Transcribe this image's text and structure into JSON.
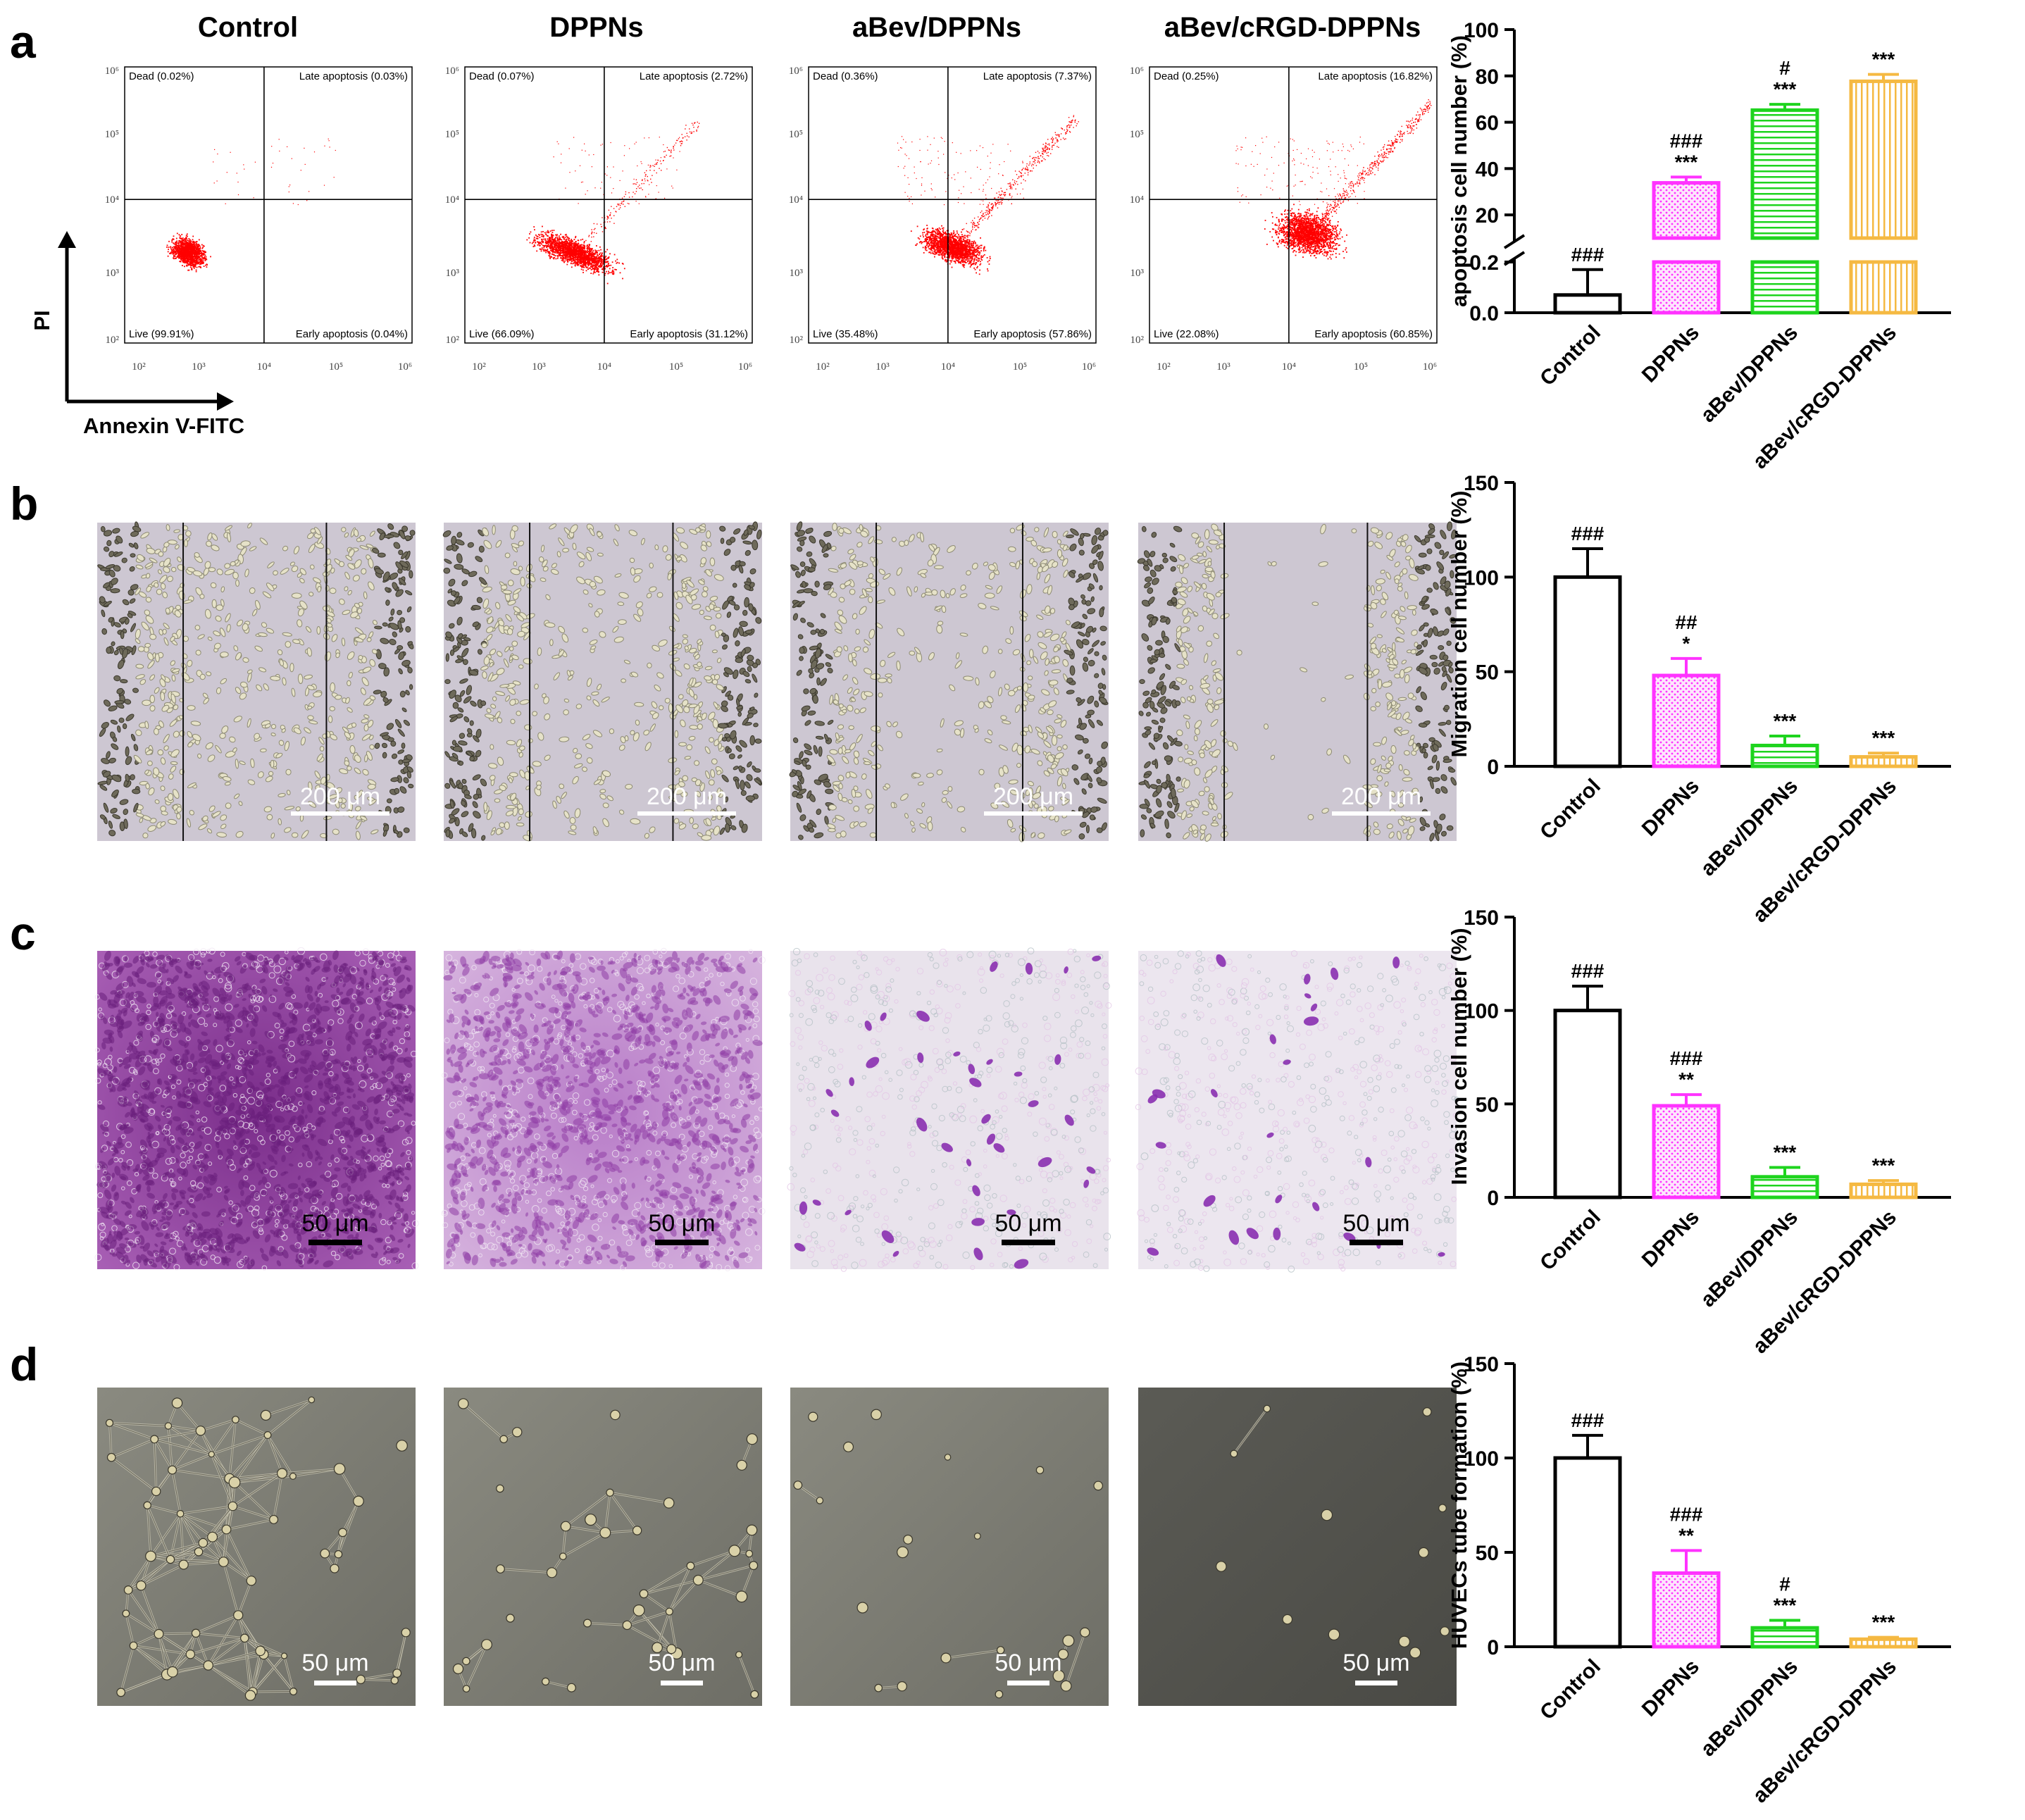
{
  "panel_letters": [
    "a",
    "b",
    "c",
    "d"
  ],
  "column_titles": [
    "Control",
    "DPPNs",
    "aBev/DPPNs",
    "aBev/cRGD-DPPNs"
  ],
  "flow": {
    "y_axis_label": "PI",
    "x_axis_label": "Annexin V-FITC",
    "tick_labels": [
      "10²",
      "10³",
      "10⁴",
      "10⁵",
      "10⁶"
    ],
    "plots": [
      {
        "dead": "Dead (0.02%)",
        "late": "Late apoptosis (0.03%)",
        "live": "Live (99.91%)",
        "early": "Early apoptosis (0.04%)"
      },
      {
        "dead": "Dead (0.07%)",
        "late": "Late apoptosis (2.72%)",
        "live": "Live (66.09%)",
        "early": "Early apoptosis (31.12%)"
      },
      {
        "dead": "Dead (0.36%)",
        "late": "Late apoptosis (7.37%)",
        "live": "Live (35.48%)",
        "early": "Early apoptosis (57.86%)"
      },
      {
        "dead": "Dead (0.25%)",
        "late": "Late apoptosis (16.82%)",
        "live": "Live (22.08%)",
        "early": "Early apoptosis (60.85%)"
      }
    ]
  },
  "scale_bars": {
    "b": "200 μm",
    "c": "50 μm",
    "d": "50 μm"
  },
  "colors": {
    "control": "#000000",
    "dppns": "#ff33ff",
    "abev_dppns": "#1ed41e",
    "abev_crgd_dppns": "#f5b942",
    "flow_dots": "#ff0000"
  },
  "chart_data": [
    {
      "type": "bar",
      "panel": "a",
      "ylabel": "apoptosis cell number (%)",
      "categories": [
        "Control",
        "DPPNs",
        "aBev/DPPNs",
        "aBev/cRGD-DPPNs"
      ],
      "values": [
        0.07,
        33.84,
        65.23,
        77.67
      ],
      "errors": [
        0.1,
        2.5,
        2.5,
        3
      ],
      "broken_axis": true,
      "lower_ylim": [
        0,
        0.2
      ],
      "upper_ylim": [
        10,
        100
      ],
      "yticks_lower": [
        "0.0",
        "0.2"
      ],
      "yticks_upper": [
        "20",
        "40",
        "60",
        "80",
        "100"
      ],
      "significance": [
        [
          "###"
        ],
        [
          "###",
          "***"
        ],
        [
          "#",
          "***"
        ],
        [
          "***"
        ]
      ]
    },
    {
      "type": "bar",
      "panel": "b",
      "ylabel": "Migration cell number (%)",
      "categories": [
        "Control",
        "DPPNs",
        "aBev/DPPNs",
        "aBev/cRGD-DPPNs"
      ],
      "values": [
        100,
        48,
        11,
        5
      ],
      "errors": [
        15,
        9,
        5,
        2
      ],
      "ylim": [
        0,
        150
      ],
      "yticks": [
        "0",
        "50",
        "100",
        "150"
      ],
      "significance": [
        [
          "###"
        ],
        [
          "##",
          "*"
        ],
        [
          "***"
        ],
        [
          "***"
        ]
      ]
    },
    {
      "type": "bar",
      "panel": "c",
      "ylabel": "Invasion cell number (%)",
      "categories": [
        "Control",
        "DPPNs",
        "aBev/DPPNs",
        "aBev/cRGD-DPPNs"
      ],
      "values": [
        100,
        49,
        11,
        7
      ],
      "errors": [
        13,
        6,
        5,
        2
      ],
      "ylim": [
        0,
        150
      ],
      "yticks": [
        "0",
        "50",
        "100",
        "150"
      ],
      "significance": [
        [
          "###"
        ],
        [
          "###",
          "**"
        ],
        [
          "***"
        ],
        [
          "***"
        ]
      ]
    },
    {
      "type": "bar",
      "panel": "d",
      "ylabel": "HUVECs tube formation (%)",
      "categories": [
        "Control",
        "DPPNs",
        "aBev/DPPNs",
        "aBev/cRGD-DPPNs"
      ],
      "values": [
        100,
        39,
        10,
        4
      ],
      "errors": [
        12,
        12,
        4,
        1
      ],
      "ylim": [
        0,
        150
      ],
      "yticks": [
        "0",
        "50",
        "100",
        "150"
      ],
      "significance": [
        [
          "###"
        ],
        [
          "###",
          "**"
        ],
        [
          "#",
          "***"
        ],
        [
          "***"
        ]
      ]
    }
  ]
}
